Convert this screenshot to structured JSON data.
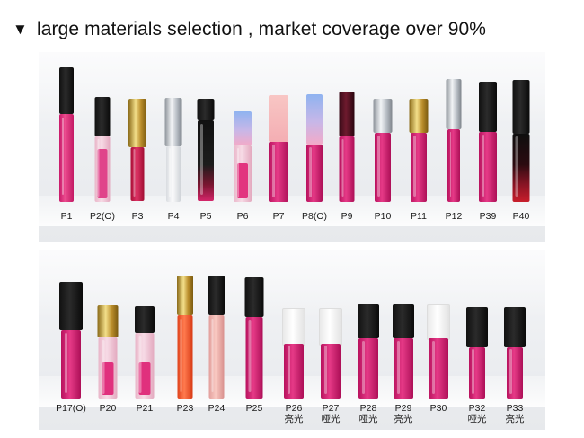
{
  "heading": {
    "marker": "▼",
    "text": "large materials selection , market coverage over 90%"
  },
  "top_row": [
    {
      "id": "P1",
      "label": "P1",
      "sub": ""
    },
    {
      "id": "P2",
      "label": "P2(O)",
      "sub": ""
    },
    {
      "id": "P3",
      "label": "P3",
      "sub": ""
    },
    {
      "id": "P4",
      "label": "P4",
      "sub": ""
    },
    {
      "id": "P5",
      "label": "P5",
      "sub": ""
    },
    {
      "id": "P6",
      "label": "P6",
      "sub": ""
    },
    {
      "id": "P7",
      "label": "P7",
      "sub": ""
    },
    {
      "id": "P8",
      "label": "P8(O)",
      "sub": ""
    },
    {
      "id": "P9",
      "label": "P9",
      "sub": ""
    },
    {
      "id": "P10",
      "label": "P10",
      "sub": ""
    },
    {
      "id": "P11",
      "label": "P11",
      "sub": ""
    },
    {
      "id": "P12",
      "label": "P12",
      "sub": ""
    },
    {
      "id": "P39",
      "label": "P39",
      "sub": ""
    },
    {
      "id": "P40",
      "label": "P40",
      "sub": ""
    }
  ],
  "bottom_row": [
    {
      "id": "P17",
      "label": "P17(O)",
      "sub": ""
    },
    {
      "id": "P20",
      "label": "P20",
      "sub": ""
    },
    {
      "id": "P21",
      "label": "P21",
      "sub": ""
    },
    {
      "id": "P23",
      "label": "P23",
      "sub": ""
    },
    {
      "id": "P24",
      "label": "P24",
      "sub": ""
    },
    {
      "id": "P25",
      "label": "P25",
      "sub": ""
    },
    {
      "id": "P26",
      "label": "P26",
      "sub": "亮光"
    },
    {
      "id": "P27",
      "label": "P27",
      "sub": "哑光"
    },
    {
      "id": "P28",
      "label": "P28",
      "sub": "哑光"
    },
    {
      "id": "P29",
      "label": "P29",
      "sub": "亮光"
    },
    {
      "id": "P30",
      "label": "P30",
      "sub": ""
    },
    {
      "id": "P32",
      "label": "P32",
      "sub": "哑光"
    },
    {
      "id": "P33",
      "label": "P33",
      "sub": "亮光"
    }
  ],
  "colors": {
    "background": "#ffffff",
    "panel": "#eceef1",
    "text": "#111111"
  }
}
